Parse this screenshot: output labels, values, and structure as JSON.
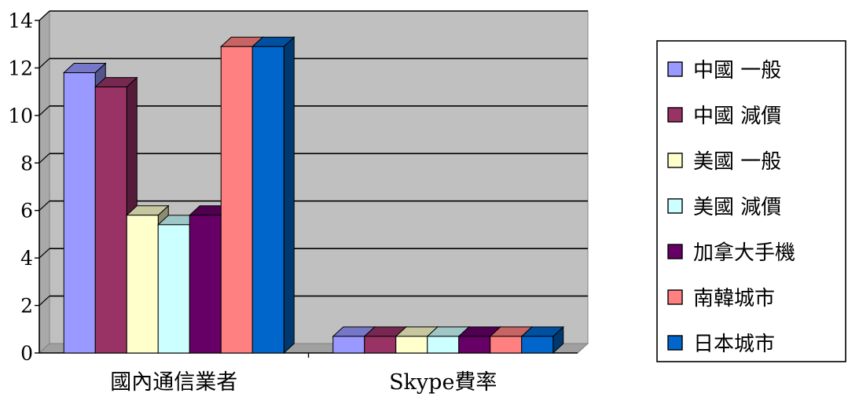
{
  "chart_data": {
    "type": "bar",
    "title": "",
    "xlabel": "",
    "ylabel": "",
    "ylim": [
      0,
      14
    ],
    "yticks": [
      0,
      2,
      4,
      6,
      8,
      10,
      12,
      14
    ],
    "categories": [
      "國內通信業者",
      "Skype費率"
    ],
    "series": [
      {
        "name": "中國 一般",
        "color": "#9999FF",
        "values": [
          11.8,
          0.7
        ]
      },
      {
        "name": "中國 減價",
        "color": "#993366",
        "values": [
          11.2,
          0.7
        ]
      },
      {
        "name": "美國 一般",
        "color": "#FFFFCC",
        "values": [
          5.8,
          0.7
        ]
      },
      {
        "name": "美國 減價",
        "color": "#CCFFFF",
        "values": [
          5.4,
          0.7
        ]
      },
      {
        "name": "加拿大手機",
        "color": "#660066",
        "values": [
          5.8,
          0.7
        ]
      },
      {
        "name": "南韓城市",
        "color": "#FF8080",
        "values": [
          12.9,
          0.7
        ]
      },
      {
        "name": "日本城市",
        "color": "#0066CC",
        "values": [
          12.9,
          0.7
        ]
      }
    ],
    "grid": true,
    "legend_position": "right",
    "style": "3d-clustered-column",
    "wall_color": "#C0C0C0"
  }
}
